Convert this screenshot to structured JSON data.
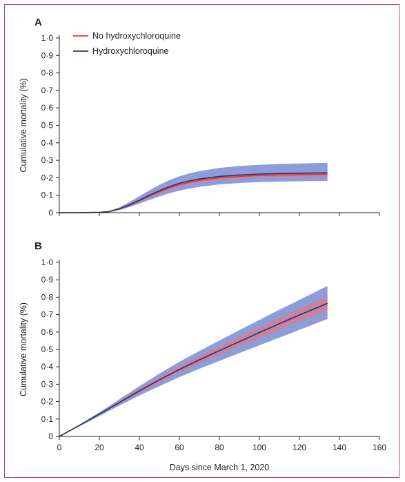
{
  "chart_data": [
    {
      "type": "line",
      "panel_label": "A",
      "ylabel": "Cumulative mortality (%)",
      "xlabel": "",
      "xlim": [
        0,
        160
      ],
      "ylim": [
        0,
        1.0
      ],
      "yticks": [
        {
          "value": 0,
          "label": "0"
        },
        {
          "value": 0.1,
          "label": "0·1"
        },
        {
          "value": 0.2,
          "label": "0·2"
        },
        {
          "value": 0.3,
          "label": "0·3"
        },
        {
          "value": 0.4,
          "label": "0·4"
        },
        {
          "value": 0.5,
          "label": "0·5"
        },
        {
          "value": 0.6,
          "label": "0·6"
        },
        {
          "value": 0.7,
          "label": "0·7"
        },
        {
          "value": 0.8,
          "label": "0·8"
        },
        {
          "value": 0.9,
          "label": "0·9"
        },
        {
          "value": 1.0,
          "label": "1·0"
        }
      ],
      "legend_position": "top-left",
      "series": [
        {
          "name": "No hydroxychloroquine",
          "color": "#e8343a",
          "band_color": "#e07a8a",
          "x": [
            0,
            10,
            20,
            25,
            30,
            35,
            40,
            45,
            50,
            55,
            60,
            65,
            70,
            80,
            90,
            100,
            110,
            120,
            134
          ],
          "values": [
            0,
            0,
            0.002,
            0.006,
            0.02,
            0.042,
            0.068,
            0.095,
            0.12,
            0.142,
            0.16,
            0.174,
            0.185,
            0.2,
            0.208,
            0.213,
            0.216,
            0.218,
            0.22
          ],
          "lower": [
            0,
            0,
            0.002,
            0.005,
            0.018,
            0.038,
            0.062,
            0.087,
            0.11,
            0.131,
            0.149,
            0.162,
            0.173,
            0.188,
            0.196,
            0.201,
            0.204,
            0.206,
            0.208
          ],
          "upper": [
            0,
            0,
            0.002,
            0.007,
            0.022,
            0.046,
            0.074,
            0.103,
            0.13,
            0.153,
            0.171,
            0.186,
            0.197,
            0.212,
            0.22,
            0.225,
            0.228,
            0.23,
            0.232
          ]
        },
        {
          "name": "Hydroxychloroquine",
          "color": "#1f3a6e",
          "band_color": "#6f85cf",
          "x": [
            0,
            10,
            20,
            25,
            30,
            35,
            40,
            45,
            50,
            55,
            60,
            65,
            70,
            80,
            90,
            100,
            110,
            120,
            134
          ],
          "values": [
            0,
            0,
            0.002,
            0.007,
            0.022,
            0.045,
            0.072,
            0.1,
            0.126,
            0.149,
            0.168,
            0.182,
            0.193,
            0.208,
            0.216,
            0.221,
            0.224,
            0.226,
            0.228
          ],
          "lower": [
            0,
            0,
            0.001,
            0.005,
            0.015,
            0.032,
            0.052,
            0.073,
            0.093,
            0.111,
            0.126,
            0.138,
            0.148,
            0.162,
            0.17,
            0.175,
            0.178,
            0.18,
            0.182
          ],
          "upper": [
            0,
            0,
            0.003,
            0.009,
            0.03,
            0.06,
            0.094,
            0.128,
            0.159,
            0.186,
            0.208,
            0.225,
            0.238,
            0.256,
            0.267,
            0.274,
            0.279,
            0.282,
            0.285
          ]
        }
      ]
    },
    {
      "type": "line",
      "panel_label": "B",
      "ylabel": "Cumulative mortality (%)",
      "xlabel": "Days since March 1, 2020",
      "xlim": [
        0,
        160
      ],
      "ylim": [
        0,
        1.0
      ],
      "xticks": [
        {
          "value": 0,
          "label": "0"
        },
        {
          "value": 20,
          "label": "20"
        },
        {
          "value": 40,
          "label": "40"
        },
        {
          "value": 60,
          "label": "60"
        },
        {
          "value": 80,
          "label": "80"
        },
        {
          "value": 100,
          "label": "100"
        },
        {
          "value": 120,
          "label": "120"
        },
        {
          "value": 140,
          "label": "140"
        },
        {
          "value": 160,
          "label": "160"
        }
      ],
      "yticks": [
        {
          "value": 0,
          "label": "0"
        },
        {
          "value": 0.1,
          "label": "0·1"
        },
        {
          "value": 0.2,
          "label": "0·2"
        },
        {
          "value": 0.3,
          "label": "0·3"
        },
        {
          "value": 0.4,
          "label": "0·4"
        },
        {
          "value": 0.5,
          "label": "0·5"
        },
        {
          "value": 0.6,
          "label": "0·6"
        },
        {
          "value": 0.7,
          "label": "0·7"
        },
        {
          "value": 0.8,
          "label": "0·8"
        },
        {
          "value": 0.9,
          "label": "0·9"
        },
        {
          "value": 1.0,
          "label": "1·0"
        }
      ],
      "series": [
        {
          "name": "No hydroxychloroquine",
          "color": "#e8343a",
          "band_color": "#e07a8a",
          "x": [
            0,
            10,
            20,
            30,
            40,
            50,
            60,
            70,
            80,
            90,
            100,
            110,
            120,
            134
          ],
          "values": [
            0,
            0.063,
            0.128,
            0.195,
            0.262,
            0.325,
            0.385,
            0.44,
            0.493,
            0.545,
            0.597,
            0.648,
            0.698,
            0.765
          ],
          "lower": [
            0,
            0.061,
            0.123,
            0.187,
            0.25,
            0.31,
            0.367,
            0.419,
            0.469,
            0.518,
            0.567,
            0.615,
            0.662,
            0.725
          ],
          "upper": [
            0,
            0.065,
            0.133,
            0.203,
            0.274,
            0.34,
            0.403,
            0.461,
            0.517,
            0.572,
            0.627,
            0.681,
            0.734,
            0.805
          ]
        },
        {
          "name": "Hydroxychloroquine",
          "color": "#1f3a6e",
          "band_color": "#6f85cf",
          "x": [
            0,
            10,
            20,
            30,
            40,
            50,
            60,
            70,
            80,
            90,
            100,
            110,
            120,
            134
          ],
          "values": [
            0,
            0.063,
            0.128,
            0.195,
            0.262,
            0.325,
            0.385,
            0.44,
            0.493,
            0.545,
            0.597,
            0.648,
            0.698,
            0.765
          ],
          "lower": [
            0,
            0.058,
            0.117,
            0.177,
            0.235,
            0.289,
            0.341,
            0.389,
            0.434,
            0.479,
            0.524,
            0.568,
            0.612,
            0.675
          ],
          "upper": [
            0,
            0.068,
            0.139,
            0.213,
            0.289,
            0.361,
            0.429,
            0.491,
            0.551,
            0.611,
            0.67,
            0.728,
            0.785,
            0.865
          ]
        }
      ]
    }
  ]
}
